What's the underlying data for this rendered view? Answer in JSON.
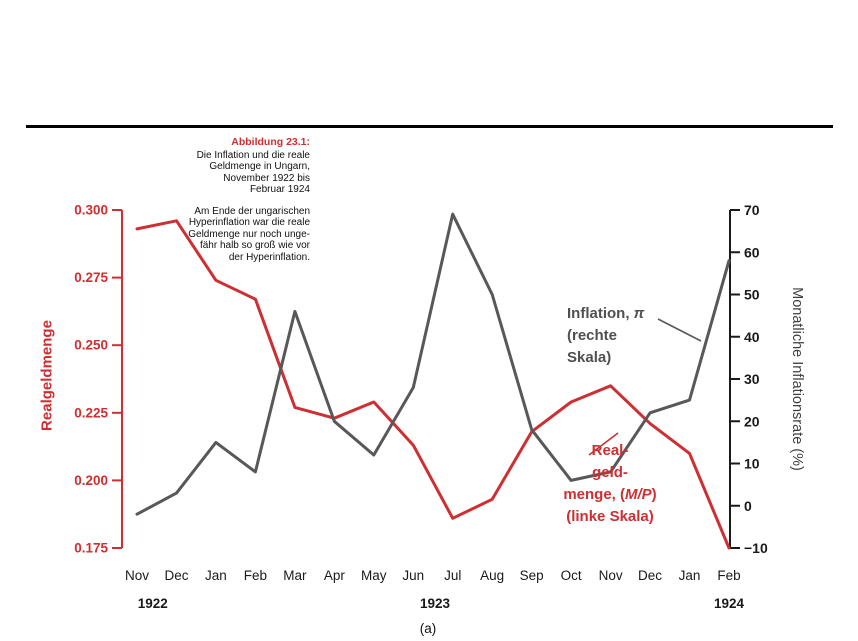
{
  "caption": {
    "title": "Abbildung 23.1:",
    "subtitle_lines": [
      "Die Inflation und die reale",
      "Geldmenge in Ungarn,",
      "November 1922 bis",
      "Februar 1924"
    ],
    "body_lines": [
      "Am Ende der ungarischen",
      "Hyperinflation war die reale",
      "Geldmenge nur noch unge-",
      "fähr halb so groß wie vor",
      "der Hyperinflation."
    ]
  },
  "panel_label": "(a)",
  "annotations": {
    "inflation_label_lines": [
      "Inflation, π",
      "(rechte",
      "Skala)"
    ],
    "real_money_label_lines": [
      "Real-",
      "geld-",
      "menge, (M/P)",
      "(linke Skala)"
    ]
  },
  "colors": {
    "red": "#cd2f32",
    "gray_line": "#58585a",
    "gray_label": "#504f51",
    "dark_text": "#1a1a1a",
    "right_axis_title": "#3f3f41"
  },
  "chart_data": {
    "type": "line",
    "title": "Die Inflation und die reale Geldmenge in Ungarn, November 1922 bis Februar 1924",
    "xlabel": "",
    "x": [
      "Nov",
      "Dec",
      "Jan",
      "Feb",
      "Mar",
      "Apr",
      "May",
      "Jun",
      "Jul",
      "Aug",
      "Sep",
      "Oct",
      "Nov",
      "Dec",
      "Jan",
      "Feb"
    ],
    "year_labels": [
      {
        "label": "1922",
        "month_index": 0.4
      },
      {
        "label": "1923",
        "month_index": 7.55
      },
      {
        "label": "1924",
        "month_index": 15
      }
    ],
    "series": [
      {
        "name": "Realgeldmenge, (M/P) (linke Skala)",
        "axis": "left",
        "color": "#cd2f32",
        "values": [
          0.293,
          0.296,
          0.274,
          0.267,
          0.227,
          0.223,
          0.229,
          0.213,
          0.186,
          0.193,
          0.218,
          0.229,
          0.235,
          0.221,
          0.21,
          0.175
        ]
      },
      {
        "name": "Inflation, π (rechte Skala)",
        "axis": "right",
        "color": "#58585a",
        "values": [
          -2,
          3,
          15,
          8,
          46,
          20,
          12,
          28,
          69,
          50,
          18,
          6,
          8,
          22,
          25,
          58
        ]
      }
    ],
    "left_axis": {
      "label": "Realgeldmenge",
      "min": 0.175,
      "max": 0.3,
      "ticks": [
        {
          "label": "0.300",
          "value": 0.3
        },
        {
          "label": "0.275",
          "value": 0.275
        },
        {
          "label": "0.250",
          "value": 0.25
        },
        {
          "label": "0.225",
          "value": 0.225
        },
        {
          "label": "0.200",
          "value": 0.2
        },
        {
          "label": "0.175",
          "value": 0.175
        }
      ]
    },
    "right_axis": {
      "label": "Monatliche Inflationsrate (%)",
      "min": -10,
      "max": 70,
      "ticks": [
        {
          "label": "70",
          "value": 70
        },
        {
          "label": "60",
          "value": 60
        },
        {
          "label": "50",
          "value": 50
        },
        {
          "label": "40",
          "value": 40
        },
        {
          "label": "30",
          "value": 30
        },
        {
          "label": "20",
          "value": 20
        },
        {
          "label": "10",
          "value": 10
        },
        {
          "label": "0",
          "value": 0
        },
        {
          "label": "−10",
          "value": -10
        }
      ]
    }
  }
}
